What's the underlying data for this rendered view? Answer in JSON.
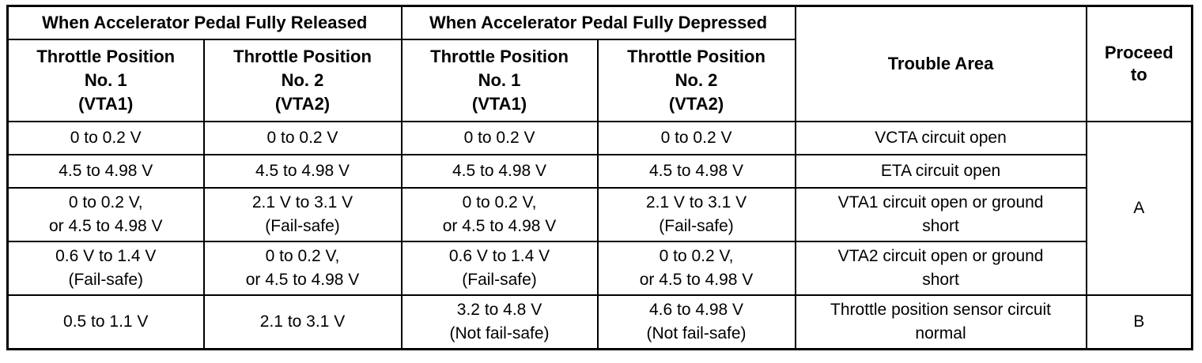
{
  "table": {
    "group_headers": {
      "released": "When Accelerator Pedal Fully Released",
      "depressed": "When Accelerator Pedal Fully Depressed"
    },
    "sub_headers": {
      "released_vta1": [
        "Throttle Position",
        "No. 1",
        "(VTA1)"
      ],
      "released_vta2": [
        "Throttle Position",
        "No. 2",
        "(VTA2)"
      ],
      "depressed_vta1": [
        "Throttle Position",
        "No. 1",
        "(VTA1)"
      ],
      "depressed_vta2": [
        "Throttle Position",
        "No. 2",
        "(VTA2)"
      ]
    },
    "trouble_area_header": "Trouble Area",
    "proceed_header": [
      "Proceed",
      "to"
    ],
    "rows": [
      {
        "released_vta1": [
          "0 to 0.2 V"
        ],
        "released_vta2": [
          "0 to 0.2 V"
        ],
        "depressed_vta1": [
          "0 to 0.2 V"
        ],
        "depressed_vta2": [
          "0 to 0.2 V"
        ],
        "trouble_area": [
          "VCTA circuit open"
        ]
      },
      {
        "released_vta1": [
          "4.5 to 4.98 V"
        ],
        "released_vta2": [
          "4.5 to 4.98 V"
        ],
        "depressed_vta1": [
          "4.5 to 4.98 V"
        ],
        "depressed_vta2": [
          "4.5 to 4.98 V"
        ],
        "trouble_area": [
          "ETA circuit open"
        ]
      },
      {
        "released_vta1": [
          "0 to 0.2 V,",
          "or 4.5 to 4.98 V"
        ],
        "released_vta2": [
          "2.1 V to 3.1 V",
          "(Fail-safe)"
        ],
        "depressed_vta1": [
          "0 to 0.2 V,",
          "or 4.5 to 4.98 V"
        ],
        "depressed_vta2": [
          "2.1 V to 3.1 V",
          "(Fail-safe)"
        ],
        "trouble_area": [
          "VTA1 circuit open or ground",
          "short"
        ]
      },
      {
        "released_vta1": [
          "0.6 V to 1.4 V",
          "(Fail-safe)"
        ],
        "released_vta2": [
          "0 to 0.2 V,",
          "or 4.5 to 4.98 V"
        ],
        "depressed_vta1": [
          "0.6 V to 1.4 V",
          "(Fail-safe)"
        ],
        "depressed_vta2": [
          "0 to 0.2 V,",
          "or 4.5 to 4.98 V"
        ],
        "trouble_area": [
          "VTA2 circuit open or ground",
          "short"
        ]
      },
      {
        "released_vta1": [
          "0.5 to 1.1 V"
        ],
        "released_vta2": [
          "2.1 to 3.1 V"
        ],
        "depressed_vta1": [
          "3.2 to 4.8 V",
          "(Not fail-safe)"
        ],
        "depressed_vta2": [
          "4.6 to 4.98 V",
          "(Not fail-safe)"
        ],
        "trouble_area": [
          "Throttle position sensor circuit",
          "normal"
        ]
      }
    ],
    "proceed_values": {
      "a": "A",
      "b": "B"
    }
  }
}
